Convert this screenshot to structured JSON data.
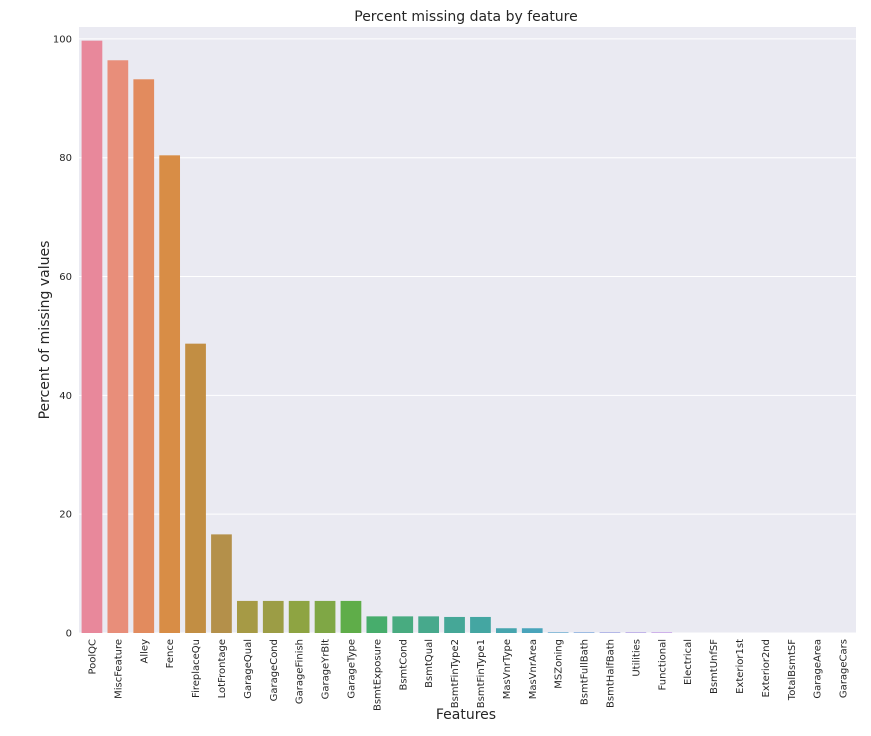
{
  "chart_data": {
    "type": "bar",
    "title": "Percent missing data by feature",
    "xlabel": "Features",
    "ylabel": "Percent of missing values",
    "ylim": [
      0,
      102
    ],
    "yticks": [
      0,
      20,
      40,
      60,
      80,
      100
    ],
    "grid": true,
    "categories": [
      "PoolQC",
      "MiscFeature",
      "Alley",
      "Fence",
      "FireplaceQu",
      "LotFrontage",
      "GarageQual",
      "GarageCond",
      "GarageFinish",
      "GarageYrBlt",
      "GarageType",
      "BsmtExposure",
      "BsmtCond",
      "BsmtQual",
      "BsmtFinType2",
      "BsmtFinType1",
      "MasVnrType",
      "MasVnrArea",
      "MSZoning",
      "BsmtFullBath",
      "BsmtHalfBath",
      "Utilities",
      "Functional",
      "Electrical",
      "BsmtUnfSF",
      "Exterior1st",
      "Exterior2nd",
      "TotalBsmtSF",
      "GarageArea",
      "GarageCars"
    ],
    "values": [
      99.7,
      96.4,
      93.2,
      80.4,
      48.7,
      16.6,
      5.4,
      5.4,
      5.4,
      5.4,
      5.4,
      2.8,
      2.8,
      2.8,
      2.7,
      2.7,
      0.8,
      0.8,
      0.1,
      0.1,
      0.1,
      0.1,
      0.1,
      0.0,
      0.0,
      0.0,
      0.0,
      0.0,
      0.0,
      0.0
    ],
    "colors": [
      "#e8889b",
      "#e88e7a",
      "#e28b5e",
      "#d88d46",
      "#c28e43",
      "#b4904a",
      "#a69a45",
      "#9c9d45",
      "#8ea442",
      "#7fa745",
      "#5fad49",
      "#47ad6c",
      "#48ab80",
      "#47a98c",
      "#45a797",
      "#44a6a2",
      "#46a5ae",
      "#49a4bb",
      "#50a1ca",
      "#6b9dd9",
      "#8f96e0",
      "#a791e3",
      "#bb8ce4",
      "#cf86e3",
      "#dd82d8",
      "#e683c8",
      "#eb85b6",
      "#e88aa6",
      "#e58a9c",
      "#e38a95"
    ],
    "background": "#eaeaf2",
    "gridcolor": "#ffffff"
  }
}
